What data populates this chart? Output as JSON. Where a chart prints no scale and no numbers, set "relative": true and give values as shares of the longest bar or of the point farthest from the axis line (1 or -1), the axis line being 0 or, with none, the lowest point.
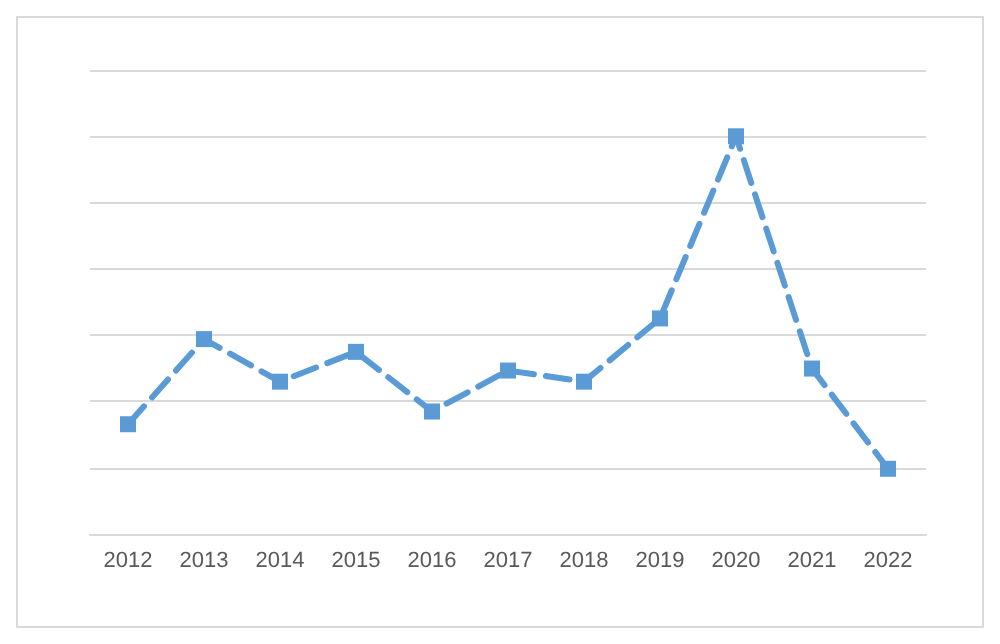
{
  "chart_data": {
    "type": "line",
    "categories": [
      "2012",
      "2013",
      "2014",
      "2015",
      "2016",
      "2017",
      "2018",
      "2019",
      "2020",
      "2021",
      "2022"
    ],
    "series": [
      {
        "color": "#5b9bd5",
        "values": [
          0.276,
          0.49,
          0.383,
          0.458,
          0.308,
          0.411,
          0.383,
          0.542,
          1,
          0.416,
          0.164
        ]
      }
    ],
    "relative": true,
    "grid": "y",
    "marker": "square",
    "line_style": "dashed"
  }
}
